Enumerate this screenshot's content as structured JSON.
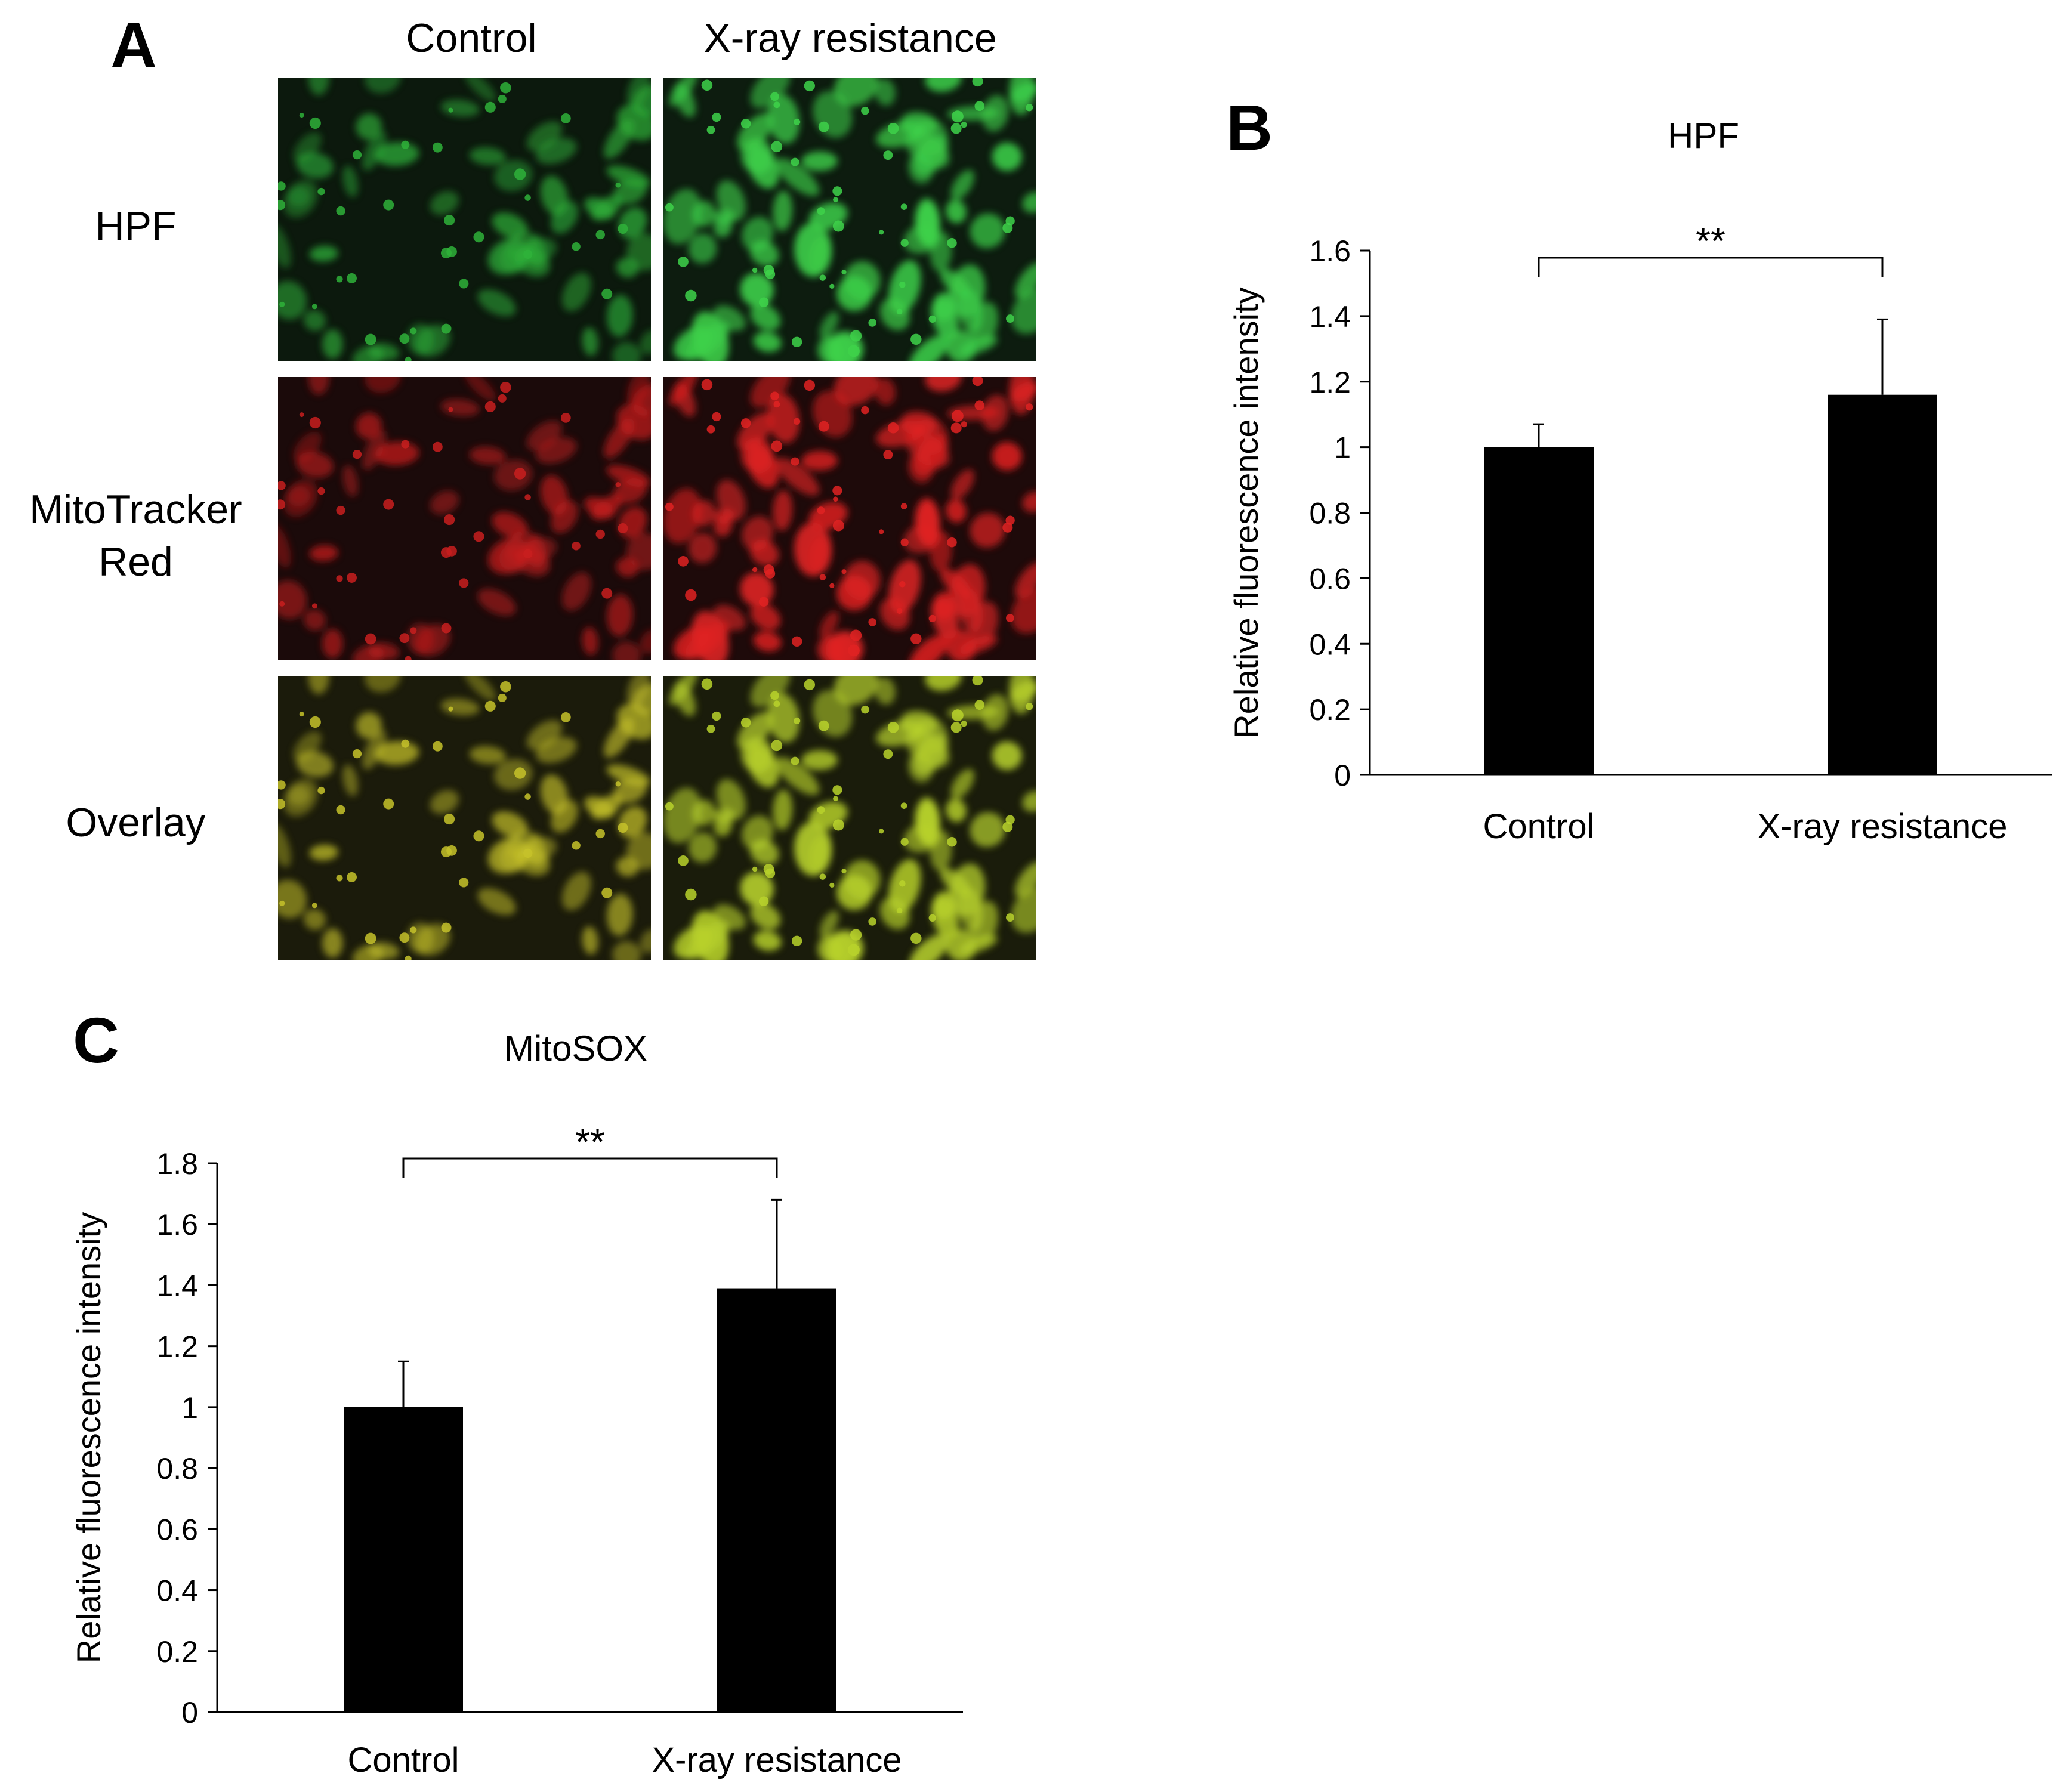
{
  "panel_a": {
    "letter": "A",
    "columns": [
      "Control",
      "X-ray resistance"
    ],
    "rows": [
      "HPF",
      "MitoTracker\nRed",
      "Overlay"
    ],
    "images": [
      {
        "row": "HPF",
        "column": "Control",
        "stain_color": "#2fb23a"
      },
      {
        "row": "HPF",
        "column": "X-ray resistance",
        "stain_color": "#3ed24a"
      },
      {
        "row": "MitoTracker Red",
        "column": "Control",
        "stain_color": "#c81e1e"
      },
      {
        "row": "MitoTracker Red",
        "column": "X-ray resistance",
        "stain_color": "#e02222"
      },
      {
        "row": "Overlay",
        "column": "Control",
        "stain_color": "#c6c22a"
      },
      {
        "row": "Overlay",
        "column": "X-ray resistance",
        "stain_color": "#b8d22c"
      }
    ]
  },
  "panel_b": {
    "letter": "B"
  },
  "panel_c": {
    "letter": "C"
  },
  "chart_data": [
    {
      "type": "bar",
      "title": "HPF",
      "xlabel": "",
      "ylabel": "Relative fluorescence intensity",
      "categories": [
        "Control",
        "X-ray resistance"
      ],
      "values": [
        1.0,
        1.16
      ],
      "error_bars": [
        0.07,
        0.23
      ],
      "ylim": [
        0,
        1.6
      ],
      "yticks": [
        0,
        0.2,
        0.4,
        0.6,
        0.8,
        1,
        1.2,
        1.4,
        1.6
      ],
      "ytick_labels": [
        "0",
        "0.2",
        "0.4",
        "0.6",
        "0.8",
        "1",
        "1.2",
        "1.4",
        "1.6"
      ],
      "significance": {
        "between": [
          "Control",
          "X-ray resistance"
        ],
        "label": "**"
      },
      "bar_color": "#000000",
      "grid": false
    },
    {
      "type": "bar",
      "title": "MitoSOX",
      "xlabel": "",
      "ylabel": "Relative fluorescence intensity",
      "categories": [
        "Control",
        "X-ray resistance"
      ],
      "values": [
        1.0,
        1.39
      ],
      "error_bars": [
        0.15,
        0.29
      ],
      "ylim": [
        0,
        1.8
      ],
      "yticks": [
        0,
        0.2,
        0.4,
        0.6,
        0.8,
        1,
        1.2,
        1.4,
        1.6,
        1.8
      ],
      "ytick_labels": [
        "0",
        "0.2",
        "0.4",
        "0.6",
        "0.8",
        "1",
        "1.2",
        "1.4",
        "1.6",
        "1.8"
      ],
      "significance": {
        "between": [
          "Control",
          "X-ray resistance"
        ],
        "label": "**"
      },
      "bar_color": "#000000",
      "grid": false
    }
  ]
}
